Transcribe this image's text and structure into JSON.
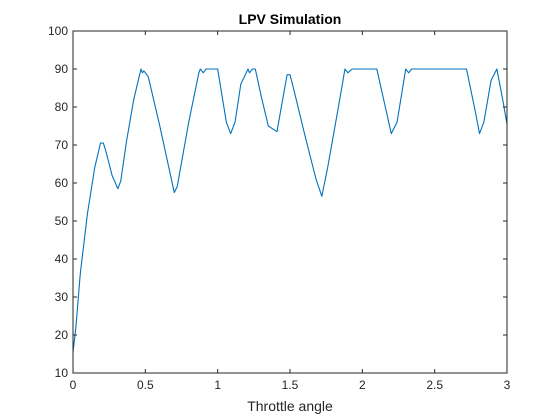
{
  "chart_data": {
    "type": "line",
    "title": "LPV Simulation",
    "xlabel": "Throttle angle",
    "ylabel": "",
    "xlim": [
      0,
      3
    ],
    "ylim": [
      10,
      100
    ],
    "xticks": [
      0,
      0.5,
      1,
      1.5,
      2,
      2.5,
      3
    ],
    "xtick_labels": [
      "0",
      "0.5",
      "1",
      "1.5",
      "2",
      "2.5",
      "3"
    ],
    "yticks": [
      10,
      20,
      30,
      40,
      50,
      60,
      70,
      80,
      90,
      100
    ],
    "ytick_labels": [
      "10",
      "20",
      "30",
      "40",
      "50",
      "60",
      "70",
      "80",
      "90",
      "100"
    ],
    "grid": false,
    "series": [
      {
        "color": "#0072BD",
        "x": [
          0,
          0.02,
          0.05,
          0.1,
          0.15,
          0.19,
          0.21,
          0.23,
          0.27,
          0.31,
          0.33,
          0.37,
          0.42,
          0.47,
          0.48,
          0.49,
          0.52,
          0.6,
          0.7,
          0.72,
          0.8,
          0.87,
          0.88,
          0.9,
          0.92,
          0.94,
          1.0,
          1.03,
          1.06,
          1.09,
          1.12,
          1.16,
          1.21,
          1.22,
          1.24,
          1.26,
          1.3,
          1.35,
          1.41,
          1.44,
          1.48,
          1.5,
          1.53,
          1.6,
          1.68,
          1.72,
          1.76,
          1.83,
          1.88,
          1.9,
          1.93,
          2.02,
          2.1,
          2.2,
          2.24,
          2.3,
          2.32,
          2.34,
          2.4,
          2.6,
          2.72,
          2.78,
          2.81,
          2.84,
          2.89,
          2.93,
          2.97,
          3.0
        ],
        "y": [
          15.5,
          22,
          36,
          52,
          64,
          70.5,
          70.5,
          68,
          62,
          58.5,
          60.5,
          71,
          82,
          90,
          89,
          89.5,
          88,
          75,
          57.5,
          59,
          76,
          89,
          90,
          89,
          90,
          90,
          90,
          83,
          76,
          73,
          76,
          86,
          90,
          89,
          90,
          90,
          83,
          75,
          73.5,
          80,
          88.5,
          88.5,
          84,
          73,
          61,
          56.5,
          64,
          79,
          90,
          89,
          90,
          90,
          90,
          73,
          76,
          90,
          89,
          90,
          90,
          90,
          90,
          79,
          73,
          76,
          87,
          90,
          82,
          75.5
        ]
      }
    ]
  }
}
